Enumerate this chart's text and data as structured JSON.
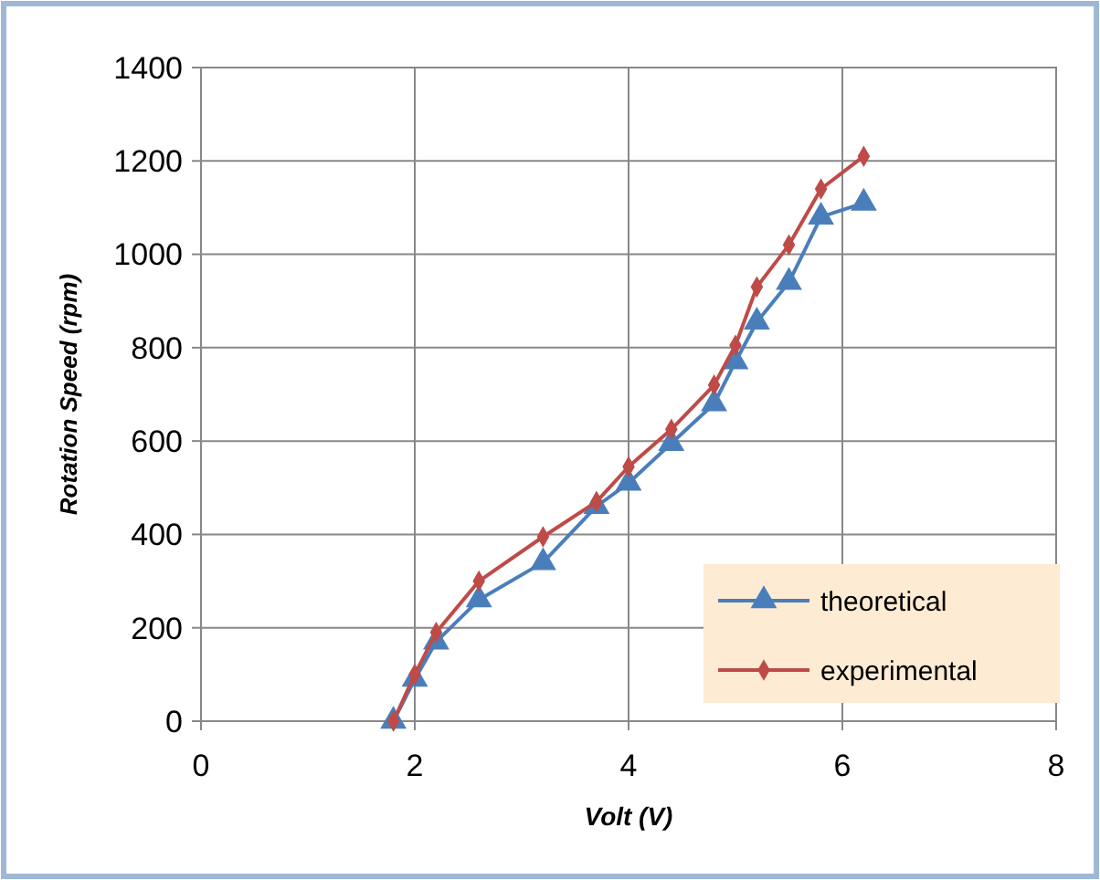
{
  "chart_data": {
    "type": "line",
    "xlabel": "Volt (V)",
    "ylabel": "Rotation Speed (rpm)",
    "xlim": [
      0,
      8
    ],
    "xticks": [
      0,
      2,
      4,
      6,
      8
    ],
    "ylim": [
      0,
      1400
    ],
    "yticks": [
      0,
      200,
      400,
      600,
      800,
      1000,
      1200,
      1400
    ],
    "grid": true,
    "legend": "bottom right",
    "series": [
      {
        "name": "theoretical",
        "color": "#4a7ebb",
        "marker": "triangle",
        "x": [
          1.8,
          2.0,
          2.2,
          2.6,
          3.2,
          3.7,
          4.0,
          4.4,
          4.8,
          5.0,
          5.2,
          5.5,
          5.8,
          6.2
        ],
        "values": [
          0,
          90,
          170,
          260,
          340,
          460,
          510,
          595,
          680,
          770,
          855,
          940,
          1080,
          1110
        ]
      },
      {
        "name": "experimental",
        "color": "#be4b48",
        "marker": "diamond",
        "x": [
          1.8,
          2.0,
          2.2,
          2.6,
          3.2,
          3.7,
          4.0,
          4.4,
          4.8,
          5.0,
          5.2,
          5.5,
          5.8,
          6.2
        ],
        "values": [
          0,
          100,
          190,
          300,
          395,
          470,
          545,
          625,
          720,
          805,
          930,
          1020,
          1140,
          1210
        ]
      }
    ]
  }
}
